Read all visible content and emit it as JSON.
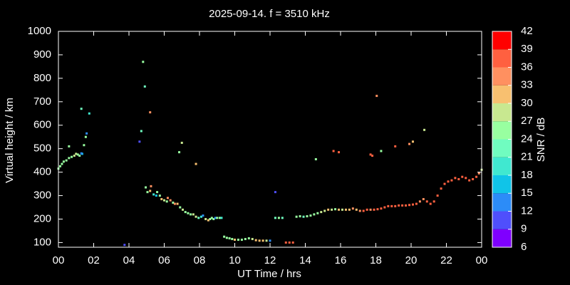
{
  "chart_data": {
    "type": "scatter",
    "title": "2025-09-14. f = 3510 kHz",
    "xlabel": "UT Time / hrs",
    "ylabel": "Virtual height / km",
    "xlim": [
      0,
      24
    ],
    "xticks": [
      {
        "value": 0,
        "label": "00"
      },
      {
        "value": 2,
        "label": "02"
      },
      {
        "value": 4,
        "label": "04"
      },
      {
        "value": 6,
        "label": "06"
      },
      {
        "value": 8,
        "label": "08"
      },
      10,
      12,
      14,
      16,
      18,
      20,
      22,
      {
        "value": 24,
        "label": "00"
      }
    ],
    "ylim": [
      80,
      1000
    ],
    "yticks": [
      100,
      200,
      300,
      400,
      500,
      600,
      700,
      800,
      900,
      1000
    ],
    "colorbar": {
      "label": "SNR / dB",
      "lim": [
        6,
        42
      ],
      "ticks": [
        6,
        9,
        12,
        15,
        18,
        21,
        24,
        27,
        30,
        33,
        36,
        39,
        42
      ],
      "colors": [
        "#7f00ff",
        "#4f4ffc",
        "#2c8cf8",
        "#10c4e8",
        "#40e8d0",
        "#70fcc0",
        "#98ffa0",
        "#c8e890",
        "#f8c070",
        "#ff9060",
        "#ff6040",
        "#ff0000"
      ]
    },
    "x": [
      0.0,
      0.1,
      0.2,
      0.3,
      0.45,
      0.6,
      0.75,
      0.9,
      1.0,
      1.1,
      1.2,
      1.35,
      0.6,
      1.3,
      1.45,
      1.55,
      1.6,
      1.75,
      1.3,
      3.75,
      4.6,
      4.7,
      4.8,
      4.9,
      5.2,
      4.95,
      5.05,
      5.2,
      5.25,
      5.4,
      5.55,
      5.6,
      5.75,
      5.85,
      6.0,
      6.15,
      6.2,
      6.35,
      6.5,
      6.6,
      6.75,
      6.9,
      7.05,
      7.2,
      7.35,
      7.5,
      7.65,
      7.8,
      7.95,
      8.1,
      8.2,
      8.35,
      8.5,
      8.6,
      8.7,
      8.8,
      8.9,
      9.0,
      9.15,
      9.25,
      6.85,
      7.0,
      7.8,
      9.4,
      9.55,
      9.7,
      9.85,
      10.0,
      10.2,
      10.4,
      10.6,
      10.8,
      11.0,
      11.2,
      11.4,
      11.6,
      11.8,
      12.0,
      12.3,
      12.3,
      12.5,
      12.7,
      12.9,
      13.1,
      13.3,
      13.5,
      13.7,
      13.9,
      14.1,
      14.3,
      14.5,
      14.6,
      14.7,
      14.9,
      15.1,
      15.3,
      15.5,
      15.7,
      15.9,
      16.1,
      16.3,
      16.5,
      16.7,
      16.9,
      17.1,
      17.3,
      17.5,
      17.7,
      17.9,
      18.1,
      18.3,
      18.5,
      18.7,
      18.9,
      19.1,
      19.3,
      19.5,
      19.7,
      19.9,
      20.1,
      20.3,
      20.5,
      20.7,
      20.9,
      21.1,
      21.3,
      21.5,
      21.7,
      21.9,
      22.1,
      22.3,
      22.5,
      22.7,
      22.9,
      23.1,
      23.3,
      23.5,
      23.7,
      23.85,
      24.0,
      15.6,
      15.9,
      17.7,
      17.8,
      18.05,
      18.3,
      19.1,
      19.9,
      20.1,
      20.75
    ],
    "y": [
      415,
      425,
      435,
      445,
      450,
      460,
      465,
      470,
      478,
      475,
      470,
      478,
      510,
      670,
      515,
      550,
      565,
      650,
      480,
      90,
      530,
      575,
      870,
      765,
      655,
      335,
      315,
      320,
      340,
      305,
      300,
      315,
      300,
      285,
      280,
      275,
      290,
      280,
      270,
      265,
      265,
      250,
      240,
      230,
      225,
      220,
      220,
      210,
      205,
      210,
      215,
      200,
      195,
      200,
      205,
      200,
      205,
      205,
      205,
      205,
      485,
      525,
      435,
      125,
      120,
      118,
      115,
      112,
      112,
      112,
      115,
      118,
      115,
      110,
      108,
      108,
      108,
      108,
      315,
      205,
      205,
      205,
      100,
      100,
      100,
      210,
      212,
      210,
      212,
      215,
      220,
      455,
      225,
      230,
      235,
      240,
      240,
      242,
      240,
      240,
      240,
      240,
      245,
      240,
      235,
      235,
      240,
      240,
      240,
      242,
      245,
      250,
      255,
      255,
      255,
      258,
      258,
      258,
      260,
      262,
      265,
      275,
      285,
      275,
      265,
      275,
      300,
      330,
      350,
      360,
      365,
      375,
      370,
      380,
      375,
      365,
      370,
      380,
      395,
      410,
      490,
      485,
      475,
      470,
      725,
      490,
      510,
      520,
      530,
      580
    ],
    "snr": [
      25,
      25,
      25,
      25,
      25,
      25,
      25,
      28,
      28,
      25,
      25,
      16,
      25,
      22,
      25,
      25,
      12,
      18,
      12,
      10,
      10,
      22,
      24,
      22,
      34,
      25,
      25,
      30,
      34,
      20,
      16,
      25,
      25,
      30,
      27,
      25,
      34,
      34,
      25,
      34,
      30,
      25,
      27,
      25,
      25,
      25,
      27,
      27,
      22,
      20,
      12,
      27,
      30,
      25,
      25,
      25,
      14,
      25,
      25,
      20,
      25,
      28,
      30,
      25,
      25,
      25,
      25,
      30,
      25,
      25,
      25,
      25,
      27,
      30,
      30,
      30,
      28,
      12,
      10,
      22,
      25,
      22,
      36,
      36,
      36,
      25,
      25,
      22,
      25,
      25,
      25,
      25,
      25,
      27,
      27,
      30,
      27,
      25,
      30,
      27,
      30,
      30,
      33,
      30,
      34,
      36,
      36,
      33,
      36,
      36,
      36,
      36,
      36,
      36,
      36,
      36,
      36,
      36,
      36,
      36,
      36,
      33,
      34,
      36,
      36,
      36,
      36,
      38,
      38,
      36,
      36,
      38,
      38,
      38,
      38,
      36,
      38,
      36,
      33,
      28,
      38,
      38,
      36,
      36,
      34,
      25,
      38,
      34,
      30,
      27
    ]
  }
}
